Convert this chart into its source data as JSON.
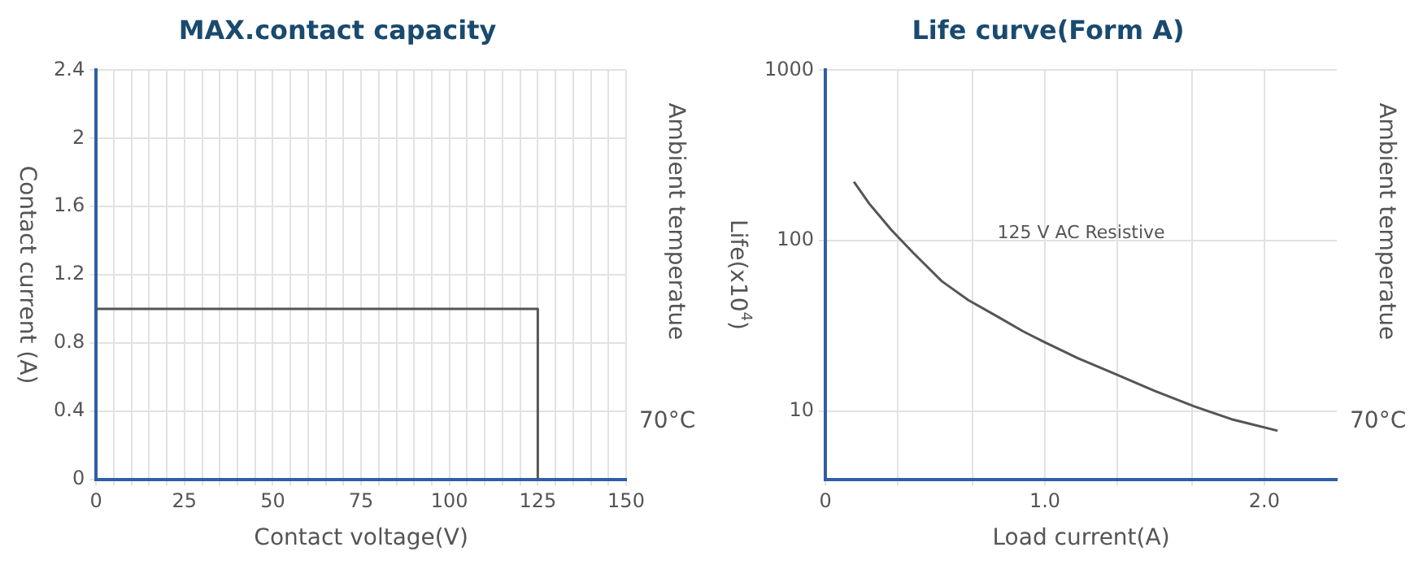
{
  "chart_data": [
    {
      "type": "line",
      "title": "MAX.contact capacity",
      "xlabel": "Contact voltage(V)",
      "ylabel": "Contact current (A)",
      "annotations": [
        "Ambient temperatue",
        "70°C"
      ],
      "series": [
        {
          "color": "#555555",
          "x": [
            0,
            125,
            125
          ],
          "values": [
            1.0,
            1.0,
            0
          ]
        }
      ],
      "xlim": [
        0,
        150
      ],
      "ylim": [
        0,
        2.4
      ],
      "xticks": [
        0,
        {
          "value": 5,
          "label": null
        },
        {
          "value": 10,
          "label": null
        },
        {
          "value": 15,
          "label": null
        },
        {
          "value": 20,
          "label": null
        },
        25,
        {
          "value": 30,
          "label": null
        },
        {
          "value": 35,
          "label": null
        },
        {
          "value": 40,
          "label": null
        },
        {
          "value": 45,
          "label": null
        },
        50,
        {
          "value": 55,
          "label": null
        },
        {
          "value": 60,
          "label": null
        },
        {
          "value": 65,
          "label": null
        },
        {
          "value": 70,
          "label": null
        },
        75,
        {
          "value": 80,
          "label": null
        },
        {
          "value": 85,
          "label": null
        },
        {
          "value": 90,
          "label": null
        },
        {
          "value": 95,
          "label": null
        },
        100,
        {
          "value": 105,
          "label": null
        },
        {
          "value": 110,
          "label": null
        },
        {
          "value": 115,
          "label": null
        },
        {
          "value": 120,
          "label": null
        },
        125,
        {
          "value": 130,
          "label": null
        },
        {
          "value": 135,
          "label": null
        },
        {
          "value": 140,
          "label": null
        },
        {
          "value": 145,
          "label": null
        },
        150
      ],
      "yticks": [
        0,
        0.4,
        0.8,
        1.2,
        1.6,
        2.0,
        2.4
      ],
      "grid": true
    },
    {
      "type": "line",
      "title": "Life curve(Form A)",
      "xlabel": "Load current(A)",
      "ylabel": "Life(x10$^{4}$)",
      "annotations": [
        "Ambient temperatue",
        "70°C",
        "125 V AC Resistive"
      ],
      "series": [
        {
          "color": "#555555",
          "x": [
            0.13,
            0.2,
            0.3,
            0.4,
            0.53,
            0.65,
            0.79,
            0.9,
            1.0,
            1.15,
            1.31,
            1.5,
            1.68,
            1.85,
            2.06
          ],
          "values": [
            222,
            165,
            116,
            85,
            58,
            45,
            35.6,
            29.5,
            25.4,
            20.5,
            16.8,
            13.2,
            10.7,
            9,
            7.7
          ]
        }
      ],
      "xlim": [
        0,
        2.33
      ],
      "ylim": [
        4,
        1000
      ],
      "log": "y",
      "xticks": [
        0,
        {
          "value": 0.33,
          "label": null
        },
        {
          "value": 0.67,
          "label": null
        },
        {
          "value": 1,
          "label": "1.0"
        },
        {
          "value": 1.33,
          "label": null
        },
        {
          "value": 1.67,
          "label": null
        },
        {
          "value": 2,
          "label": "2.0"
        }
      ],
      "yticks": [
        10,
        100,
        1000
      ],
      "grid": true
    }
  ]
}
